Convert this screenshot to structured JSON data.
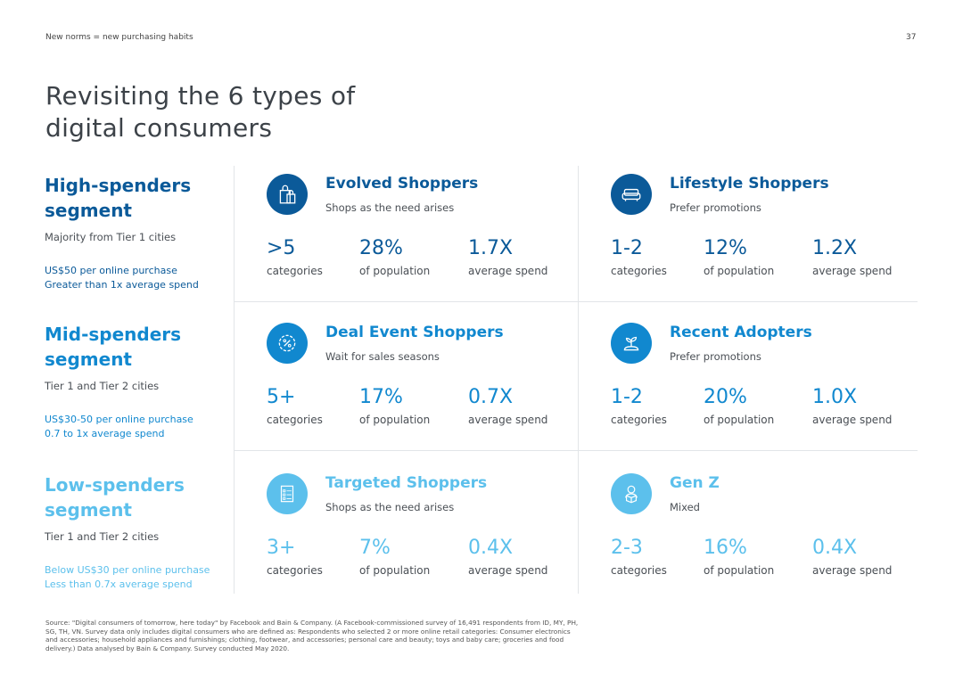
{
  "header": {
    "section": "New norms = new purchasing habits",
    "page_number": "37"
  },
  "title": "Revisiting the 6 types of digital consumers",
  "colors": {
    "high": "#0b5a99",
    "mid": "#1188cf",
    "low": "#5cc0ec"
  },
  "segments": [
    {
      "name": "High-spenders segment",
      "cities": "Majority from Tier 1 cities",
      "spend_line1": "US$50 per online purchase",
      "spend_line2": "Greater than 1x average spend",
      "types": [
        {
          "icon": "shopping-bags-icon",
          "name": "Evolved Shoppers",
          "desc": "Shops as the need arises",
          "categories": ">5",
          "categories_label": "categories",
          "population": "28%",
          "population_label": "of population",
          "spend": "1.7X",
          "spend_label": "average spend"
        },
        {
          "icon": "sofa-icon",
          "name": "Lifestyle Shoppers",
          "desc": "Prefer promotions",
          "categories": "1-2",
          "categories_label": "categories",
          "population": "12%",
          "population_label": "of population",
          "spend": "1.2X",
          "spend_label": "average spend"
        }
      ]
    },
    {
      "name": "Mid-spenders segment",
      "cities": "Tier 1 and Tier 2 cities",
      "spend_line1": "US$30-50 per online purchase",
      "spend_line2": "0.7 to 1x average spend",
      "types": [
        {
          "icon": "discount-badge-icon",
          "name": "Deal Event Shoppers",
          "desc": "Wait for sales seasons",
          "categories": "5+",
          "categories_label": "categories",
          "population": "17%",
          "population_label": "of population",
          "spend": "0.7X",
          "spend_label": "average spend"
        },
        {
          "icon": "sprout-icon",
          "name": "Recent Adopters",
          "desc": "Prefer promotions",
          "categories": "1-2",
          "categories_label": "categories",
          "population": "20%",
          "population_label": "of population",
          "spend": "1.0X",
          "spend_label": "average spend"
        }
      ]
    },
    {
      "name": "Low-spenders segment",
      "cities": "Tier 1 and Tier 2 cities",
      "spend_line1": "Below US$30 per online purchase",
      "spend_line2": "Less than 0.7x average spend",
      "types": [
        {
          "icon": "checklist-icon",
          "name": "Targeted Shoppers",
          "desc": "Shops as the need arises",
          "categories": "3+",
          "categories_label": "categories",
          "population": "7%",
          "population_label": "of population",
          "spend": "0.4X",
          "spend_label": "average spend"
        },
        {
          "icon": "person-with-box-icon",
          "name": "Gen Z",
          "desc": "Mixed",
          "categories": "2-3",
          "categories_label": "categories",
          "population": "16%",
          "population_label": "of population",
          "spend": "0.4X",
          "spend_label": "average spend"
        }
      ]
    }
  ],
  "footnote": "Source: \"Digital consumers of tomorrow, here today\" by Facebook and Bain & Company. (A Facebook-commissioned survey of 16,491 respondents from ID, MY, PH, SG, TH, VN. Survey data only includes digital consumers who are defined as: Respondents who selected 2 or more online retail categories: Consumer electronics and accessories; household appliances and furnishings; clothing, footwear, and accessories; personal care and beauty; toys and baby care; groceries and food delivery.) Data analysed by Bain & Company. Survey conducted May 2020."
}
